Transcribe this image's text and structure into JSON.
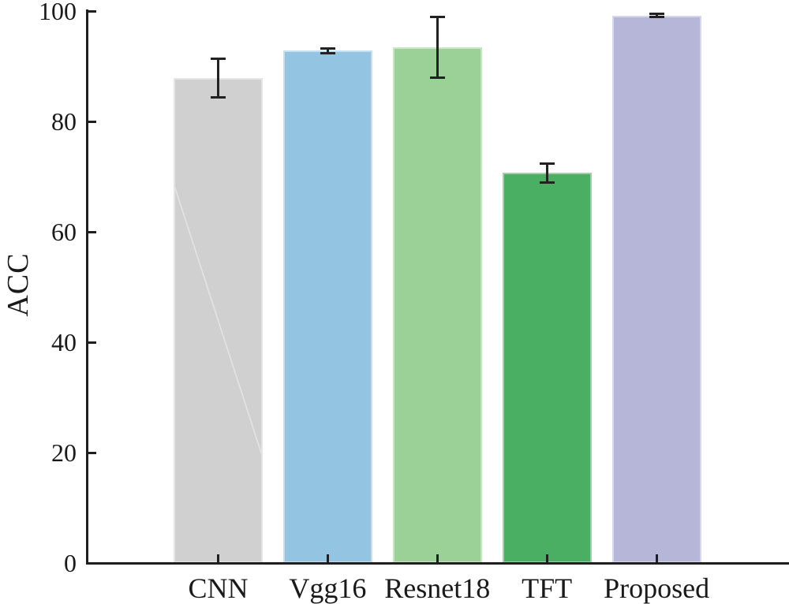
{
  "chart_data": {
    "type": "bar",
    "title": "",
    "categories": [
      "CNN",
      "Vgg16",
      "Resnet18",
      "TFT",
      "Proposed"
    ],
    "values": [
      87.9,
      92.8,
      93.4,
      70.7,
      99.2
    ],
    "error_bars": [
      3.5,
      0.4,
      5.5,
      1.7,
      0.3
    ],
    "bar_colors": [
      "#d0d0d0",
      "#93c4e1",
      "#9bd096",
      "#4aae63",
      "#b6b6d9"
    ],
    "xlabel": "",
    "ylabel": "ACC",
    "ylim": [
      0,
      100
    ],
    "yticks": [
      0,
      20,
      40,
      60,
      80,
      100
    ],
    "ytick_labels": [
      "0",
      "20",
      "40",
      "60",
      "80",
      "100"
    ],
    "axis_color": "#1f1f1f",
    "error_bar_color": "#222222",
    "grid": false,
    "legend": null
  }
}
